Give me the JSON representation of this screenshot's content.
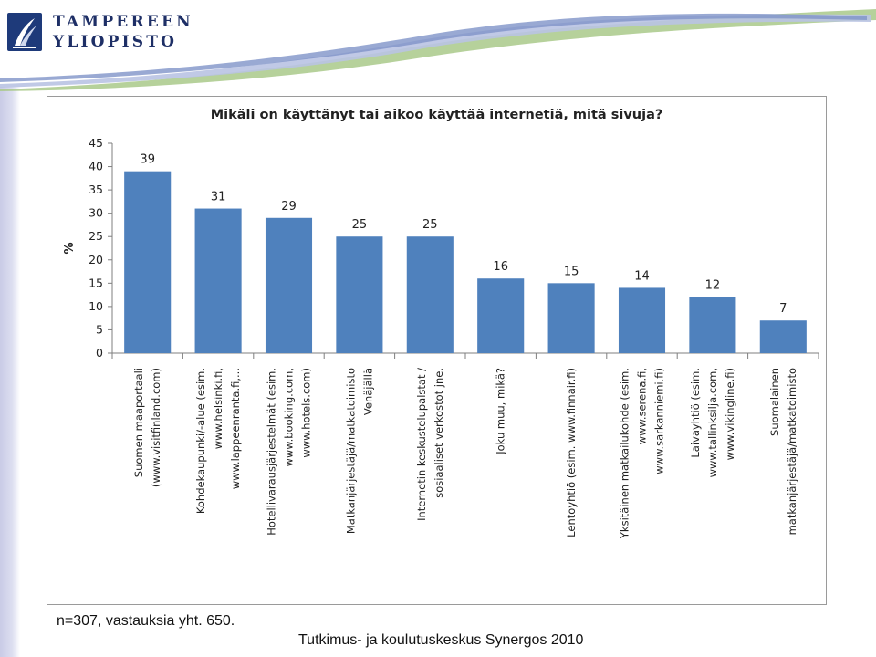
{
  "header": {
    "logo_line1": "TAMPEREEN",
    "logo_line2": "YLIOPISTO",
    "brand_color": "#1e3a7a"
  },
  "chart_data": {
    "type": "bar",
    "title": "Mikäli on käyttänyt tai aikoo käyttää internetiä, mitä sivuja?",
    "ylabel": "%",
    "ylim": [
      0,
      45
    ],
    "yticks": [
      0,
      5,
      10,
      15,
      20,
      25,
      30,
      35,
      40,
      45
    ],
    "bar_color": "#4f81bd",
    "categories": [
      [
        "Suomen maaportaali",
        "(www.visitfinland.com)"
      ],
      [
        "Kohdekaupunki/-alue (esim.",
        "www.helsinki.fi,",
        "www.lappeenranta.fi,..."
      ],
      [
        "Hotellivarausjärjestelmät (esim.",
        "www.booking.com,",
        "www.hotels.com)"
      ],
      [
        "Matkanjärjestäjä/matkatoimisto",
        "Venäjällä"
      ],
      [
        "Internetin keskustelupalstat /",
        "sosiaaliset verkostot jne."
      ],
      [
        "Joku muu, mikä?"
      ],
      [
        "Lentoyhtiö (esim. www.finnair.fi)"
      ],
      [
        "Yksitäinen matkailukohde (esim.",
        "www.serena.fi,",
        "www.sarkanniemi.fi)"
      ],
      [
        "Laivayhtiö (esim.",
        "www.tallinksilja.com,",
        "www.vikingline.fi)"
      ],
      [
        "Suomalainen",
        "matkanjärjestäjä/matkatoimisto"
      ]
    ],
    "values": [
      39,
      31,
      29,
      25,
      25,
      16,
      15,
      14,
      12,
      7
    ],
    "data_labels": [
      "39",
      "31",
      "29",
      "25",
      "25",
      "16",
      "15",
      "14",
      "12",
      "7"
    ]
  },
  "footnote": "n=307, vastauksia yht. 650.",
  "footer_credit": "Tutkimus- ja koulutuskeskus Synergos 2010"
}
